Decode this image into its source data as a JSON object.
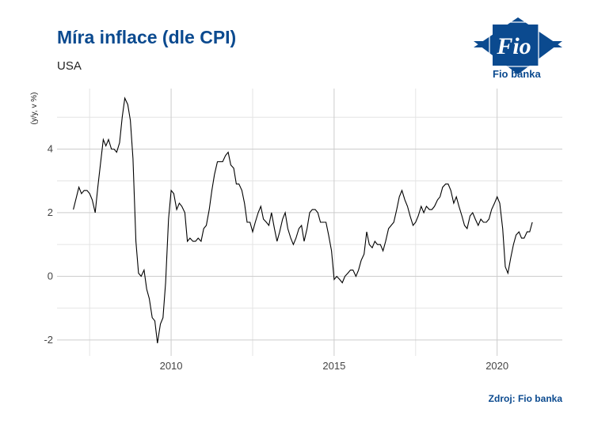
{
  "header": {
    "title": "Míra inflace (dle CPI)",
    "subtitle": "USA"
  },
  "logo": {
    "glyph_text": "Fio",
    "text": "Fio banka",
    "color": "#0b4a8f"
  },
  "footer": {
    "source": "Zdroj: Fio banka"
  },
  "chart_data": {
    "type": "line",
    "ylabel": "(y/y, v %)",
    "xlim": [
      2006.5,
      2022.0
    ],
    "ylim": [
      -2.5,
      5.9
    ],
    "x_ticks": [
      2010,
      2015,
      2020
    ],
    "x_tick_labels": [
      "2010",
      "2015",
      "2020"
    ],
    "y_ticks": [
      -2,
      0,
      2,
      4
    ],
    "y_tick_labels": [
      "-2",
      "0",
      "2",
      "4"
    ],
    "grid": true,
    "line_color": "#000000",
    "series": [
      {
        "points": [
          [
            2007.0,
            2.1
          ],
          [
            2007.17,
            2.8
          ],
          [
            2007.25,
            2.6
          ],
          [
            2007.33,
            2.7
          ],
          [
            2007.42,
            2.7
          ],
          [
            2007.5,
            2.6
          ],
          [
            2007.58,
            2.4
          ],
          [
            2007.67,
            2.0
          ],
          [
            2007.75,
            2.8
          ],
          [
            2007.83,
            3.5
          ],
          [
            2007.92,
            4.3
          ],
          [
            2008.0,
            4.1
          ],
          [
            2008.08,
            4.3
          ],
          [
            2008.17,
            4.0
          ],
          [
            2008.25,
            4.0
          ],
          [
            2008.33,
            3.9
          ],
          [
            2008.42,
            4.2
          ],
          [
            2008.5,
            5.0
          ],
          [
            2008.58,
            5.6
          ],
          [
            2008.67,
            5.4
          ],
          [
            2008.75,
            4.9
          ],
          [
            2008.83,
            3.7
          ],
          [
            2008.92,
            1.1
          ],
          [
            2009.0,
            0.1
          ],
          [
            2009.08,
            0.0
          ],
          [
            2009.17,
            0.2
          ],
          [
            2009.25,
            -0.4
          ],
          [
            2009.33,
            -0.7
          ],
          [
            2009.42,
            -1.3
          ],
          [
            2009.5,
            -1.4
          ],
          [
            2009.58,
            -2.1
          ],
          [
            2009.67,
            -1.5
          ],
          [
            2009.75,
            -1.3
          ],
          [
            2009.83,
            -0.2
          ],
          [
            2009.92,
            1.8
          ],
          [
            2010.0,
            2.7
          ],
          [
            2010.08,
            2.6
          ],
          [
            2010.17,
            2.1
          ],
          [
            2010.25,
            2.3
          ],
          [
            2010.33,
            2.2
          ],
          [
            2010.42,
            2.0
          ],
          [
            2010.5,
            1.1
          ],
          [
            2010.58,
            1.2
          ],
          [
            2010.67,
            1.1
          ],
          [
            2010.75,
            1.1
          ],
          [
            2010.83,
            1.2
          ],
          [
            2010.92,
            1.1
          ],
          [
            2011.0,
            1.5
          ],
          [
            2011.08,
            1.6
          ],
          [
            2011.17,
            2.1
          ],
          [
            2011.25,
            2.7
          ],
          [
            2011.33,
            3.2
          ],
          [
            2011.42,
            3.6
          ],
          [
            2011.5,
            3.6
          ],
          [
            2011.58,
            3.6
          ],
          [
            2011.67,
            3.8
          ],
          [
            2011.75,
            3.9
          ],
          [
            2011.83,
            3.5
          ],
          [
            2011.92,
            3.4
          ],
          [
            2012.0,
            2.9
          ],
          [
            2012.08,
            2.9
          ],
          [
            2012.17,
            2.7
          ],
          [
            2012.25,
            2.3
          ],
          [
            2012.33,
            1.7
          ],
          [
            2012.42,
            1.7
          ],
          [
            2012.5,
            1.4
          ],
          [
            2012.58,
            1.7
          ],
          [
            2012.67,
            2.0
          ],
          [
            2012.75,
            2.2
          ],
          [
            2012.83,
            1.8
          ],
          [
            2012.92,
            1.7
          ],
          [
            2013.0,
            1.6
          ],
          [
            2013.08,
            2.0
          ],
          [
            2013.17,
            1.5
          ],
          [
            2013.25,
            1.1
          ],
          [
            2013.33,
            1.4
          ],
          [
            2013.42,
            1.8
          ],
          [
            2013.5,
            2.0
          ],
          [
            2013.58,
            1.5
          ],
          [
            2013.67,
            1.2
          ],
          [
            2013.75,
            1.0
          ],
          [
            2013.83,
            1.2
          ],
          [
            2013.92,
            1.5
          ],
          [
            2014.0,
            1.6
          ],
          [
            2014.08,
            1.1
          ],
          [
            2014.17,
            1.5
          ],
          [
            2014.25,
            2.0
          ],
          [
            2014.33,
            2.1
          ],
          [
            2014.42,
            2.1
          ],
          [
            2014.5,
            2.0
          ],
          [
            2014.58,
            1.7
          ],
          [
            2014.67,
            1.7
          ],
          [
            2014.75,
            1.7
          ],
          [
            2014.83,
            1.3
          ],
          [
            2014.92,
            0.8
          ],
          [
            2015.0,
            -0.1
          ],
          [
            2015.08,
            0.0
          ],
          [
            2015.17,
            -0.1
          ],
          [
            2015.25,
            -0.2
          ],
          [
            2015.33,
            0.0
          ],
          [
            2015.42,
            0.1
          ],
          [
            2015.5,
            0.2
          ],
          [
            2015.58,
            0.2
          ],
          [
            2015.67,
            0.0
          ],
          [
            2015.75,
            0.2
          ],
          [
            2015.83,
            0.5
          ],
          [
            2015.92,
            0.7
          ],
          [
            2016.0,
            1.4
          ],
          [
            2016.08,
            1.0
          ],
          [
            2016.17,
            0.9
          ],
          [
            2016.25,
            1.1
          ],
          [
            2016.33,
            1.0
          ],
          [
            2016.42,
            1.0
          ],
          [
            2016.5,
            0.8
          ],
          [
            2016.58,
            1.1
          ],
          [
            2016.67,
            1.5
          ],
          [
            2016.75,
            1.6
          ],
          [
            2016.83,
            1.7
          ],
          [
            2016.92,
            2.1
          ],
          [
            2017.0,
            2.5
          ],
          [
            2017.08,
            2.7
          ],
          [
            2017.17,
            2.4
          ],
          [
            2017.25,
            2.2
          ],
          [
            2017.33,
            1.9
          ],
          [
            2017.42,
            1.6
          ],
          [
            2017.5,
            1.7
          ],
          [
            2017.58,
            1.9
          ],
          [
            2017.67,
            2.2
          ],
          [
            2017.75,
            2.0
          ],
          [
            2017.83,
            2.2
          ],
          [
            2017.92,
            2.1
          ],
          [
            2018.0,
            2.1
          ],
          [
            2018.08,
            2.2
          ],
          [
            2018.17,
            2.4
          ],
          [
            2018.25,
            2.5
          ],
          [
            2018.33,
            2.8
          ],
          [
            2018.42,
            2.9
          ],
          [
            2018.5,
            2.9
          ],
          [
            2018.58,
            2.7
          ],
          [
            2018.67,
            2.3
          ],
          [
            2018.75,
            2.5
          ],
          [
            2018.83,
            2.2
          ],
          [
            2018.92,
            1.9
          ],
          [
            2019.0,
            1.6
          ],
          [
            2019.08,
            1.5
          ],
          [
            2019.17,
            1.9
          ],
          [
            2019.25,
            2.0
          ],
          [
            2019.33,
            1.8
          ],
          [
            2019.42,
            1.6
          ],
          [
            2019.5,
            1.8
          ],
          [
            2019.58,
            1.7
          ],
          [
            2019.67,
            1.7
          ],
          [
            2019.75,
            1.8
          ],
          [
            2019.83,
            2.1
          ],
          [
            2019.92,
            2.3
          ],
          [
            2020.0,
            2.5
          ],
          [
            2020.08,
            2.3
          ],
          [
            2020.17,
            1.5
          ],
          [
            2020.25,
            0.3
          ],
          [
            2020.33,
            0.1
          ],
          [
            2020.42,
            0.6
          ],
          [
            2020.5,
            1.0
          ],
          [
            2020.58,
            1.3
          ],
          [
            2020.67,
            1.4
          ],
          [
            2020.75,
            1.2
          ],
          [
            2020.83,
            1.2
          ],
          [
            2020.92,
            1.4
          ],
          [
            2021.0,
            1.4
          ],
          [
            2021.08,
            1.7
          ]
        ]
      }
    ]
  }
}
